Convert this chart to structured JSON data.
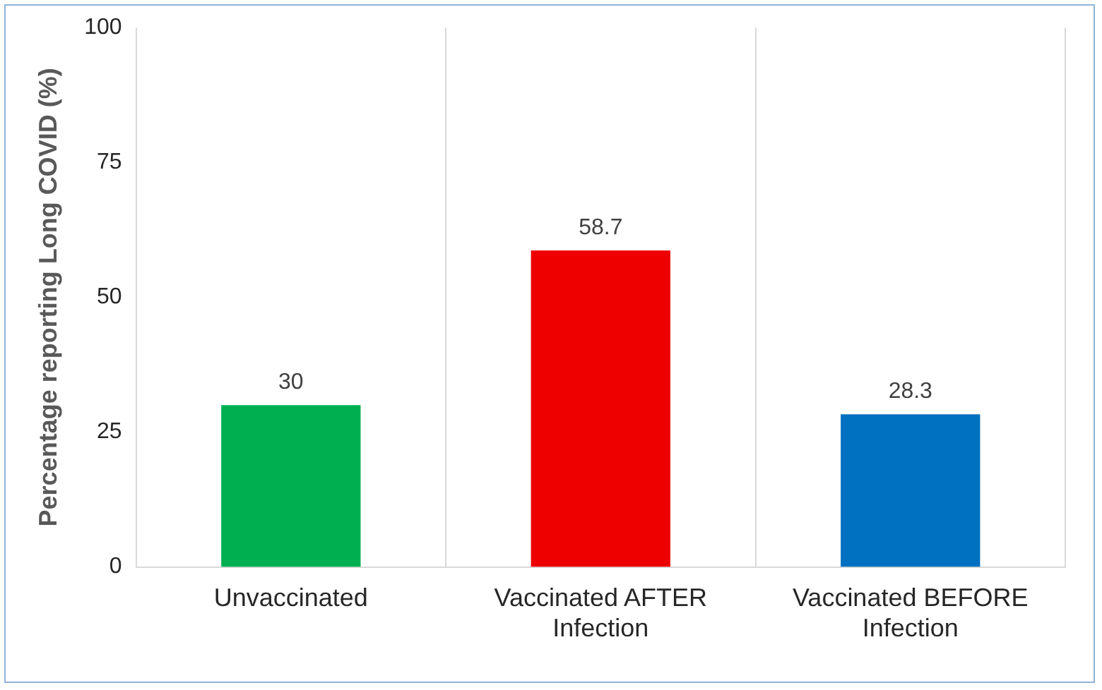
{
  "chart_data": {
    "type": "bar",
    "ylabel": "Percentage reporting Long COVID (%)",
    "categories": [
      "Unvaccinated",
      "Vaccinated AFTER Infection",
      "Vaccinated BEFORE Infection"
    ],
    "values": [
      30,
      58.7,
      28.3
    ],
    "colors": [
      "#00b050",
      "#ee0000",
      "#0070c0"
    ],
    "ylim": [
      0,
      100
    ],
    "yticks": [
      0,
      25,
      50,
      75,
      100
    ],
    "grid": "x",
    "legend": false,
    "data_labels": true
  }
}
